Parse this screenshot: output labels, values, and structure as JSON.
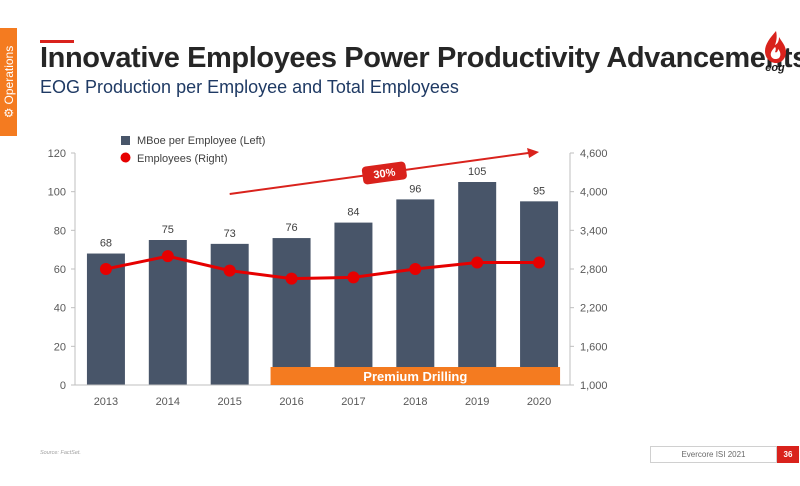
{
  "side_tab": {
    "label": "Operations",
    "icon": "gear-icon"
  },
  "header": {
    "title": "Innovative Employees Power Productivity Advancements",
    "subtitle": "EOG Production per Employee and Total Employees"
  },
  "logo": {
    "text": "eog",
    "icon": "flame-drop-icon"
  },
  "colors": {
    "accent": "#d9221c",
    "orange": "#f47b20",
    "bar": "#485569",
    "line": "#e60000"
  },
  "chart_data": {
    "type": "bar",
    "categories": [
      "2013",
      "2014",
      "2015",
      "2016",
      "2017",
      "2018",
      "2019",
      "2020"
    ],
    "series": [
      {
        "name": "MBoe per Employee (Left)",
        "type": "bar",
        "axis": "left",
        "values": [
          68,
          75,
          73,
          76,
          84,
          96,
          105,
          95
        ],
        "labels": [
          "68",
          "75",
          "73",
          "76",
          "84",
          "96",
          "105",
          "95"
        ]
      },
      {
        "name": "Employees (Right)",
        "type": "line",
        "axis": "right",
        "values": [
          2800,
          3000,
          2775,
          2650,
          2670,
          2800,
          2900,
          2900
        ]
      }
    ],
    "y_left": {
      "min": 0,
      "max": 120,
      "ticks": [
        "0",
        "20",
        "40",
        "60",
        "80",
        "100",
        "120"
      ]
    },
    "y_right": {
      "min": 1000,
      "max": 4600,
      "ticks": [
        "1,000",
        "1,600",
        "2,200",
        "2,800",
        "3,400",
        "4,000",
        "4,600"
      ]
    },
    "legend_placement": "top-left",
    "trend_arrow": {
      "label": "30%",
      "from": "2015",
      "to": "2020"
    },
    "band": {
      "label": "Premium Drilling",
      "from": "2016",
      "to": "2020"
    },
    "grid": false
  },
  "footer": {
    "source": "Source: FactSet.",
    "brand": "Evercore ISI 2021",
    "page": "36"
  }
}
